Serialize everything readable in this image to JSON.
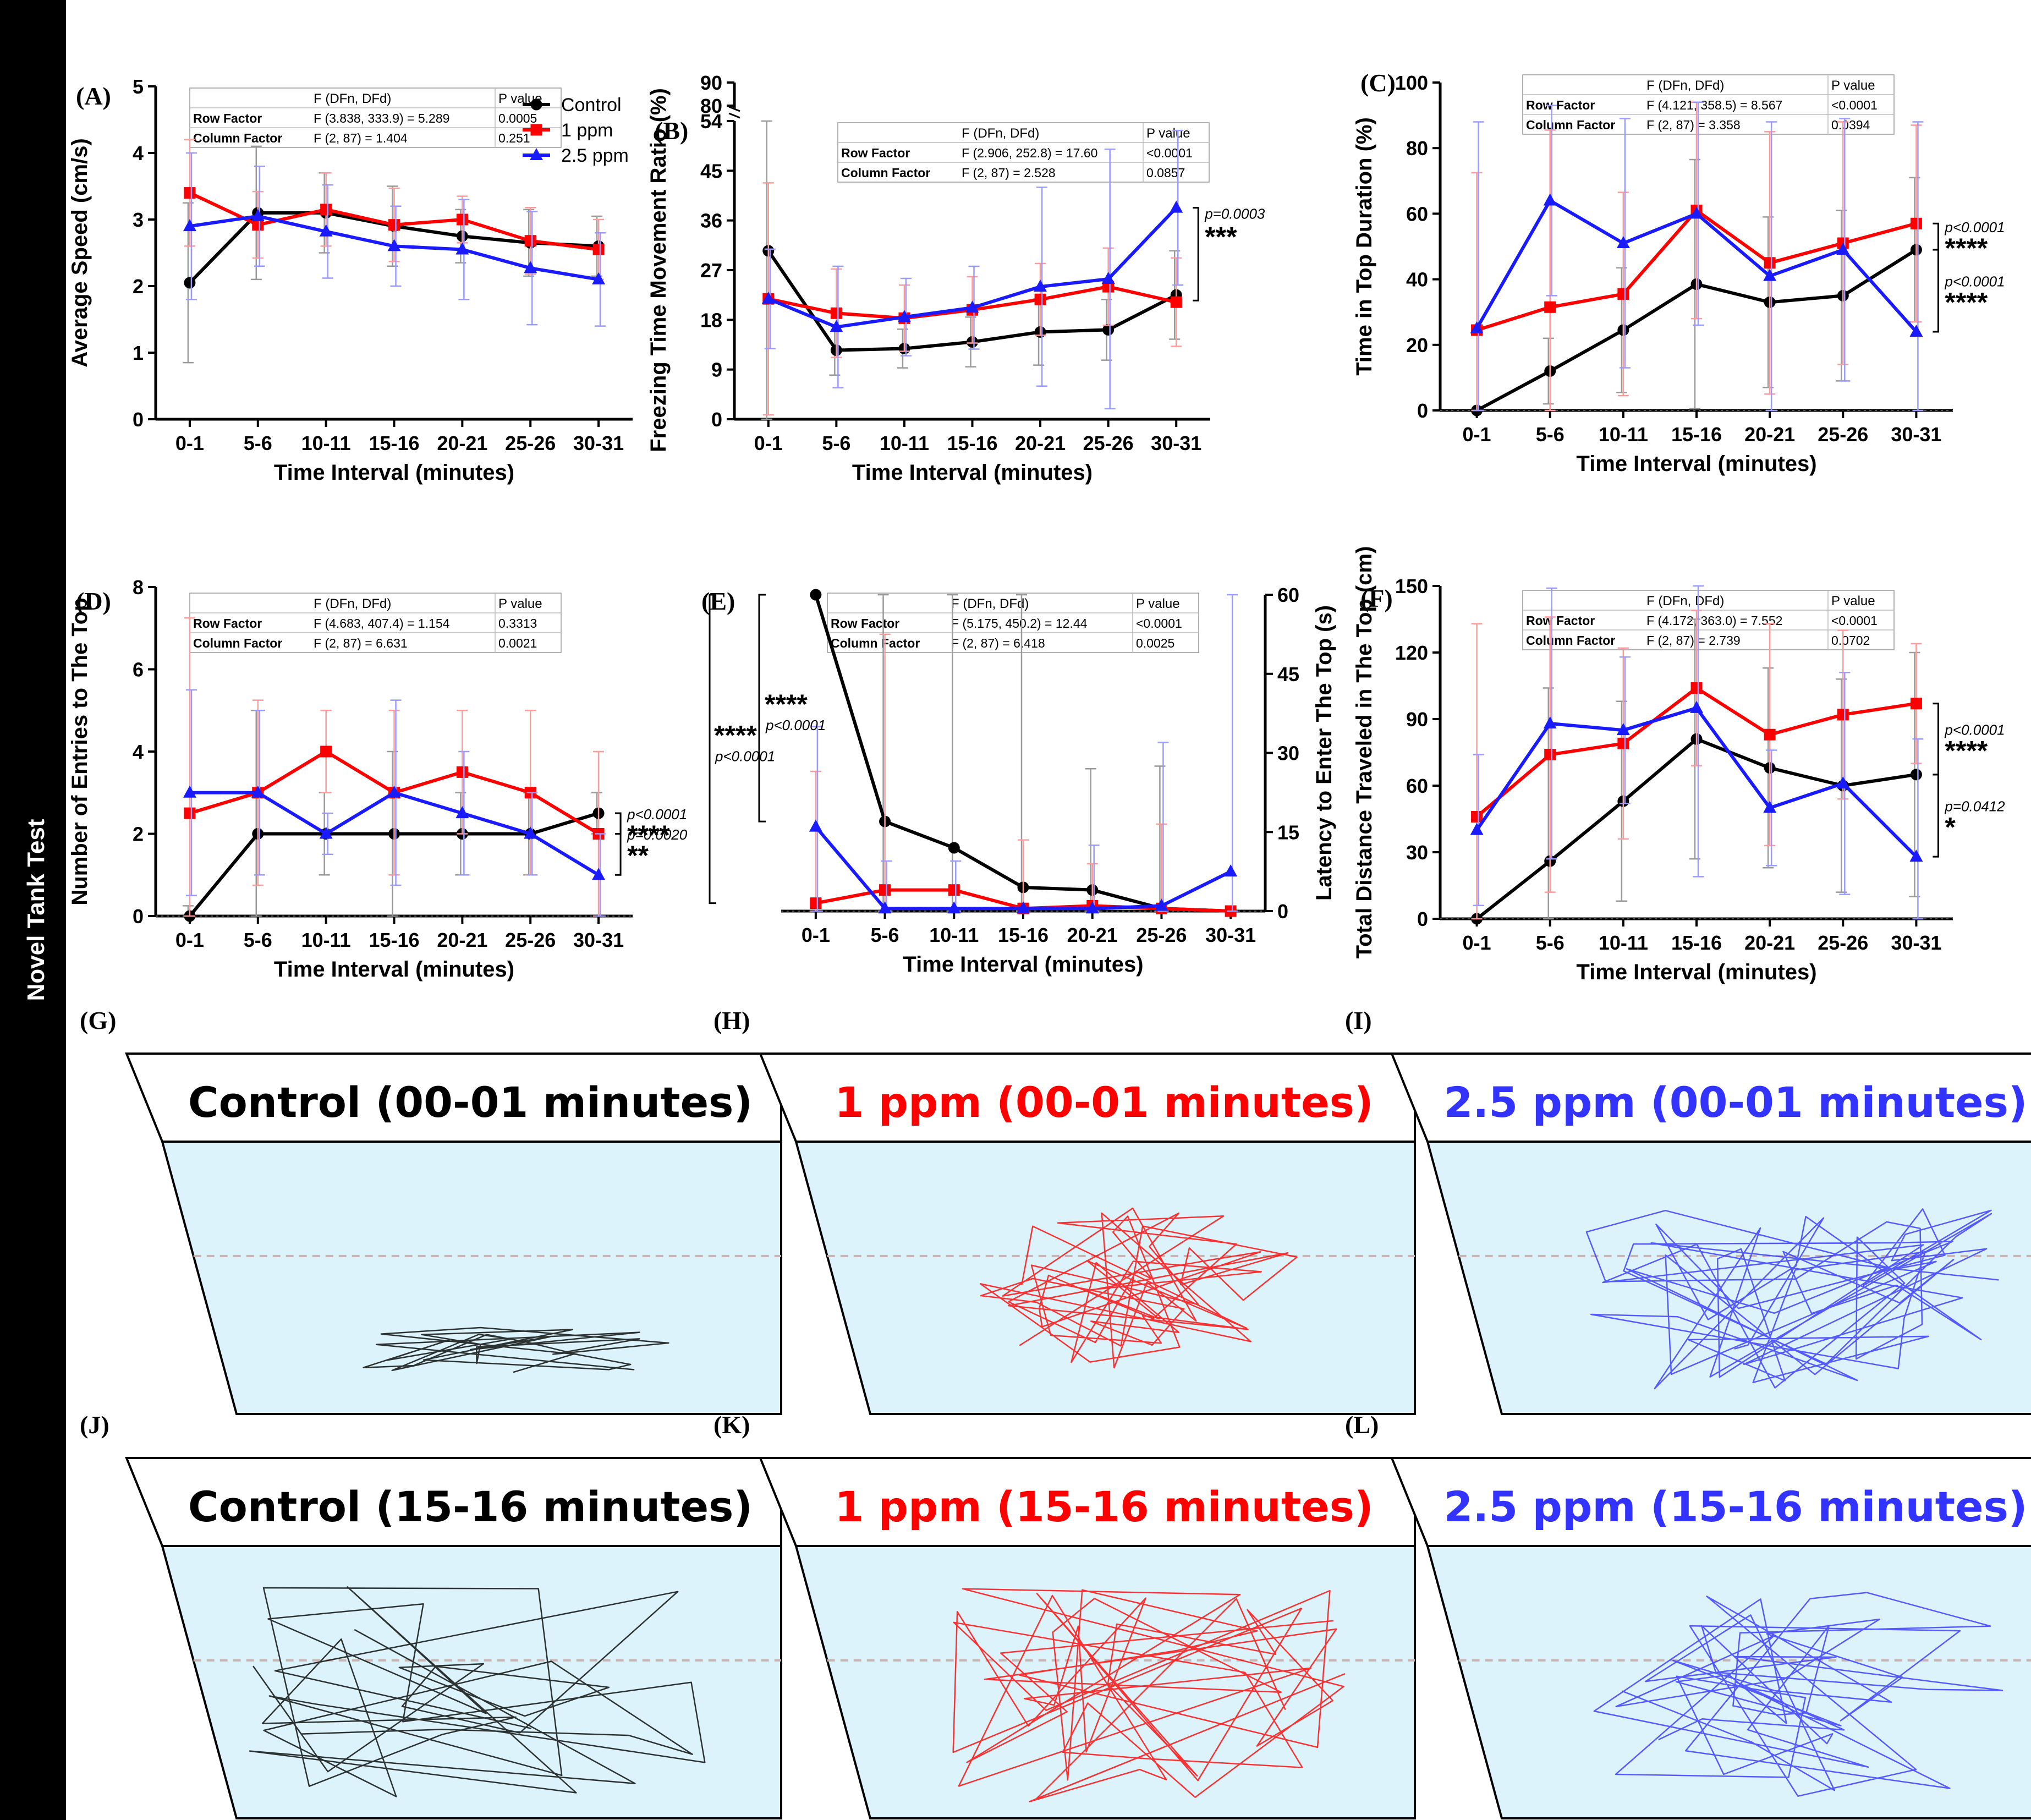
{
  "sidebar_label": "Novel Tank Test",
  "legend": [
    {
      "name": "Control",
      "color": "#000000",
      "marker": "circle"
    },
    {
      "name": "1 ppm",
      "color": "#ff0000",
      "marker": "square"
    },
    {
      "name": "2.5 ppm",
      "color": "#1a1aff",
      "marker": "triangle"
    }
  ],
  "chart_data": [
    {
      "id": "A",
      "panel_label": "(A)",
      "type": "line",
      "xlabel": "Time Interval (minutes)",
      "ylabel": "Average Speed (cm/s)",
      "categories": [
        "0-1",
        "5-6",
        "10-11",
        "15-16",
        "20-21",
        "25-26",
        "30-31"
      ],
      "ylim": [
        0,
        5
      ],
      "yticks": [
        0,
        1,
        2,
        3,
        4,
        5
      ],
      "stats": {
        "headers": [
          "",
          "F (DFn, DFd)",
          "P value"
        ],
        "rows": [
          [
            "Row Factor",
            "F (3.838, 333.9) = 5.289",
            "0.0005"
          ],
          [
            "Column Factor",
            "F (2, 87) = 1.404",
            "0.251"
          ]
        ]
      },
      "series": [
        {
          "name": "Control",
          "values": [
            2.05,
            3.1,
            3.1,
            2.9,
            2.75,
            2.65,
            2.6
          ],
          "err": [
            1.2,
            1.0,
            0.6,
            0.6,
            0.4,
            0.5,
            0.45
          ]
        },
        {
          "name": "1 ppm",
          "values": [
            3.4,
            2.92,
            3.15,
            2.92,
            3.0,
            2.68,
            2.55
          ],
          "err": [
            0.8,
            0.5,
            0.55,
            0.55,
            0.35,
            0.5,
            0.45
          ]
        },
        {
          "name": "2.5 ppm",
          "values": [
            2.9,
            3.05,
            2.82,
            2.6,
            2.55,
            2.27,
            2.1
          ],
          "err": [
            1.1,
            0.75,
            0.7,
            0.6,
            0.75,
            0.85,
            0.7
          ]
        }
      ],
      "annotations": []
    },
    {
      "id": "B",
      "panel_label": "(B)",
      "type": "line",
      "xlabel": "Time Interval (minutes)",
      "ylabel": "Freezing Time Movement Ratio (%)",
      "categories": [
        "0-1",
        "5-6",
        "10-11",
        "15-16",
        "20-21",
        "25-26",
        "30-31"
      ],
      "ylim": [
        0,
        54
      ],
      "yticks": [
        0,
        9,
        18,
        27,
        36,
        45,
        54
      ],
      "broken_axis_ticks": [
        80,
        90
      ],
      "stats": {
        "headers": [
          "",
          "F (DFn, DFd)",
          "P value"
        ],
        "rows": [
          [
            "Row Factor",
            "F (2.906, 252.8) = 17.60",
            "<0.0001"
          ],
          [
            "Column Factor",
            "F (2, 87) = 2.528",
            "0.0857"
          ]
        ]
      },
      "series": [
        {
          "name": "Control",
          "values": [
            30.5,
            12.5,
            12.8,
            14,
            15.8,
            16.2,
            22.5
          ],
          "err": [
            32,
            4.5,
            3.5,
            4.5,
            6,
            5.5,
            8
          ]
        },
        {
          "name": "1 ppm",
          "values": [
            21.8,
            19.2,
            18.3,
            19.8,
            21.7,
            24,
            21.2
          ],
          "err": [
            21,
            8,
            6,
            6,
            6.5,
            7,
            8
          ]
        },
        {
          "name": "2.5 ppm",
          "values": [
            21.8,
            16.7,
            18.5,
            20.2,
            24,
            25.4,
            38.3
          ],
          "err": [
            9,
            11,
            7,
            7.5,
            18,
            23.5,
            14
          ]
        }
      ],
      "annotations": [
        {
          "pvalue": "p=0.0003",
          "stars": "***"
        }
      ]
    },
    {
      "id": "C",
      "panel_label": "(C)",
      "type": "line",
      "xlabel": "Time Interval (minutes)",
      "ylabel": "Time in Top Duration (%)",
      "categories": [
        "0-1",
        "5-6",
        "10-11",
        "15-16",
        "20-21",
        "25-26",
        "30-31"
      ],
      "ylim": [
        0,
        100
      ],
      "yticks": [
        0,
        20,
        40,
        60,
        80,
        100
      ],
      "stats": {
        "headers": [
          "",
          "F (DFn, DFd)",
          "P value"
        ],
        "rows": [
          [
            "Row Factor",
            "F (4.121, 358.5) = 8.567",
            "<0.0001"
          ],
          [
            "Column Factor",
            "F (2, 87) = 3.358",
            "0.0394"
          ]
        ]
      },
      "series": [
        {
          "name": "Control",
          "values": [
            0,
            12,
            24.5,
            38.5,
            33,
            35,
            49
          ],
          "err": [
            0,
            10,
            19,
            38,
            26,
            26,
            22
          ]
        },
        {
          "name": "1 ppm",
          "values": [
            24.5,
            31.5,
            35.5,
            61,
            45,
            51,
            57
          ],
          "err": [
            48,
            54,
            31,
            33,
            40,
            37,
            30
          ]
        },
        {
          "name": "2.5 ppm",
          "values": [
            25,
            64,
            51,
            60,
            41,
            49,
            24
          ],
          "err": [
            63,
            29,
            38,
            34,
            47,
            40,
            64
          ]
        }
      ],
      "annotations": [
        {
          "pvalue": "p<0.0001",
          "stars": "****"
        },
        {
          "pvalue": "p<0.0001",
          "stars": "****"
        }
      ]
    },
    {
      "id": "D",
      "panel_label": "(D)",
      "type": "line",
      "xlabel": "Time Interval (minutes)",
      "ylabel": "Number of Entries to The Top",
      "categories": [
        "0-1",
        "5-6",
        "10-11",
        "15-16",
        "20-21",
        "25-26",
        "30-31"
      ],
      "ylim": [
        0,
        8
      ],
      "yticks": [
        0,
        2,
        4,
        6,
        8
      ],
      "stats": {
        "headers": [
          "",
          "F (DFn, DFd)",
          "P value"
        ],
        "rows": [
          [
            "Row Factor",
            "F (4.683, 407.4) = 1.154",
            "0.3313"
          ],
          [
            "Column Factor",
            "F (2, 87) = 6.631",
            "0.0021"
          ]
        ]
      },
      "series": [
        {
          "name": "Control",
          "values": [
            0,
            2,
            2,
            2,
            2,
            2,
            2.5
          ],
          "err": [
            0.25,
            3,
            1,
            2,
            1,
            1,
            0.5
          ]
        },
        {
          "name": "1 ppm",
          "values": [
            2.5,
            3,
            4,
            3,
            3.5,
            3,
            2
          ],
          "err": [
            4.75,
            2.25,
            1,
            2,
            1.5,
            2,
            2
          ]
        },
        {
          "name": "2.5 ppm",
          "values": [
            3,
            3,
            2,
            3,
            2.5,
            2,
            1
          ],
          "err": [
            2.5,
            2,
            0.5,
            2.25,
            1.5,
            1,
            1
          ]
        }
      ],
      "annotations": [
        {
          "pvalue": "p<0.0001",
          "stars": "****"
        },
        {
          "pvalue": "p=0.0020",
          "stars": "**"
        }
      ]
    },
    {
      "id": "E",
      "panel_label": "(E)",
      "type": "line",
      "xlabel": "Time Interval (minutes)",
      "ylabel": "Latency to Enter The Top (s)",
      "categories": [
        "0-1",
        "5-6",
        "10-11",
        "15-16",
        "20-21",
        "25-26",
        "30-31"
      ],
      "ylim": [
        0,
        60
      ],
      "yticks": [
        0,
        15,
        30,
        45,
        60
      ],
      "stats": {
        "headers": [
          "",
          "F (DFn, DFd)",
          "P value"
        ],
        "rows": [
          [
            "Row Factor",
            "F (5.175, 450.2) = 12.44",
            "<0.0001"
          ],
          [
            "Column Factor",
            "F (2, 87) = 6.418",
            "0.0025"
          ]
        ]
      },
      "series": [
        {
          "name": "Control",
          "values": [
            60,
            17,
            12,
            4.5,
            4,
            0.5,
            0
          ],
          "err": [
            0,
            43,
            51,
            55.5,
            23,
            27,
            0
          ]
        },
        {
          "name": "1 ppm",
          "values": [
            1.5,
            4,
            4,
            0.5,
            1,
            0.5,
            0
          ],
          "err": [
            25,
            48.5,
            0,
            13,
            8,
            16,
            0
          ]
        },
        {
          "name": "2.5 ppm",
          "values": [
            16,
            0.5,
            0.5,
            0.5,
            0.5,
            1,
            7.5
          ],
          "err": [
            19,
            9,
            9,
            0,
            12,
            31,
            52.5
          ]
        }
      ],
      "annotations": [
        {
          "pvalue": "p<0.0001",
          "stars": "****"
        },
        {
          "pvalue": "p<0.0001",
          "stars": "****"
        }
      ]
    },
    {
      "id": "F",
      "panel_label": "(F)",
      "type": "line",
      "xlabel": "Time Interval (minutes)",
      "ylabel": "Total Distance Traveled in The Top (cm)",
      "categories": [
        "0-1",
        "5-6",
        "10-11",
        "15-16",
        "20-21",
        "25-26",
        "30-31"
      ],
      "ylim": [
        0,
        150
      ],
      "yticks": [
        0,
        30,
        60,
        90,
        120,
        150
      ],
      "stats": {
        "headers": [
          "",
          "F (DFn, DFd)",
          "P value"
        ],
        "rows": [
          [
            "Row Factor",
            "F (4.172, 363.0) = 7.552",
            "<0.0001"
          ],
          [
            "Column Factor",
            "F (2, 87) = 2.739",
            "0.0702"
          ]
        ]
      },
      "series": [
        {
          "name": "Control",
          "values": [
            0,
            26,
            53,
            81,
            68,
            60,
            65
          ],
          "err": [
            0,
            78,
            45,
            54,
            45,
            48,
            55
          ]
        },
        {
          "name": "1 ppm",
          "values": [
            46,
            74,
            79,
            104,
            83,
            92,
            97
          ],
          "err": [
            87,
            62,
            43,
            35,
            50,
            38,
            27
          ]
        },
        {
          "name": "2.5 ppm",
          "values": [
            40,
            88,
            85,
            95,
            50,
            61,
            28
          ],
          "err": [
            34,
            61,
            33,
            76,
            26,
            50,
            53
          ]
        }
      ],
      "annotations": [
        {
          "pvalue": "p<0.0001",
          "stars": "****"
        },
        {
          "pvalue": "p=0.0412",
          "stars": "*"
        }
      ]
    }
  ],
  "tracks": [
    {
      "id": "G",
      "panel_label": "(G)",
      "title": "Control (00-01 minutes)",
      "color": "#000000"
    },
    {
      "id": "H",
      "panel_label": "(H)",
      "title": "1 ppm (00-01 minutes)",
      "color": "#ff0000"
    },
    {
      "id": "I",
      "panel_label": "(I)",
      "title": "2.5 ppm (00-01 minutes)",
      "color": "#3333ff"
    },
    {
      "id": "J",
      "panel_label": "(J)",
      "title": "Control (15-16 minutes)",
      "color": "#000000"
    },
    {
      "id": "K",
      "panel_label": "(K)",
      "title": "1 ppm (15-16 minutes)",
      "color": "#ff0000"
    },
    {
      "id": "L",
      "panel_label": "(L)",
      "title": "2.5 ppm (15-16 minutes)",
      "color": "#3333ff"
    }
  ]
}
